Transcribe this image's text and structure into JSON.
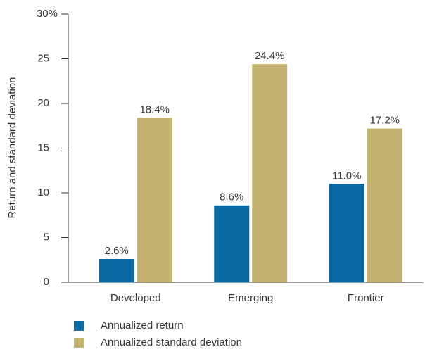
{
  "chart_data": {
    "type": "bar",
    "y_label": "Return and standard deviation",
    "categories": [
      "Developed",
      "Emerging",
      "Frontier"
    ],
    "series": [
      {
        "name": "Annualized return",
        "color": "#0a6aa1",
        "values": [
          2.6,
          8.6,
          11.0
        ],
        "value_labels": [
          "2.6%",
          "8.6%",
          "11.0%"
        ]
      },
      {
        "name": "Annualized standard deviation",
        "color": "#c4b370",
        "values": [
          18.4,
          24.4,
          17.2
        ],
        "value_labels": [
          "18.4%",
          "24.4%",
          "17.2%"
        ]
      }
    ],
    "ylim": [
      0,
      30
    ],
    "yticks": [
      0,
      5,
      10,
      15,
      20,
      25,
      {
        "value": 30,
        "label": "30%"
      }
    ],
    "grid": false,
    "legend": "bottom"
  }
}
